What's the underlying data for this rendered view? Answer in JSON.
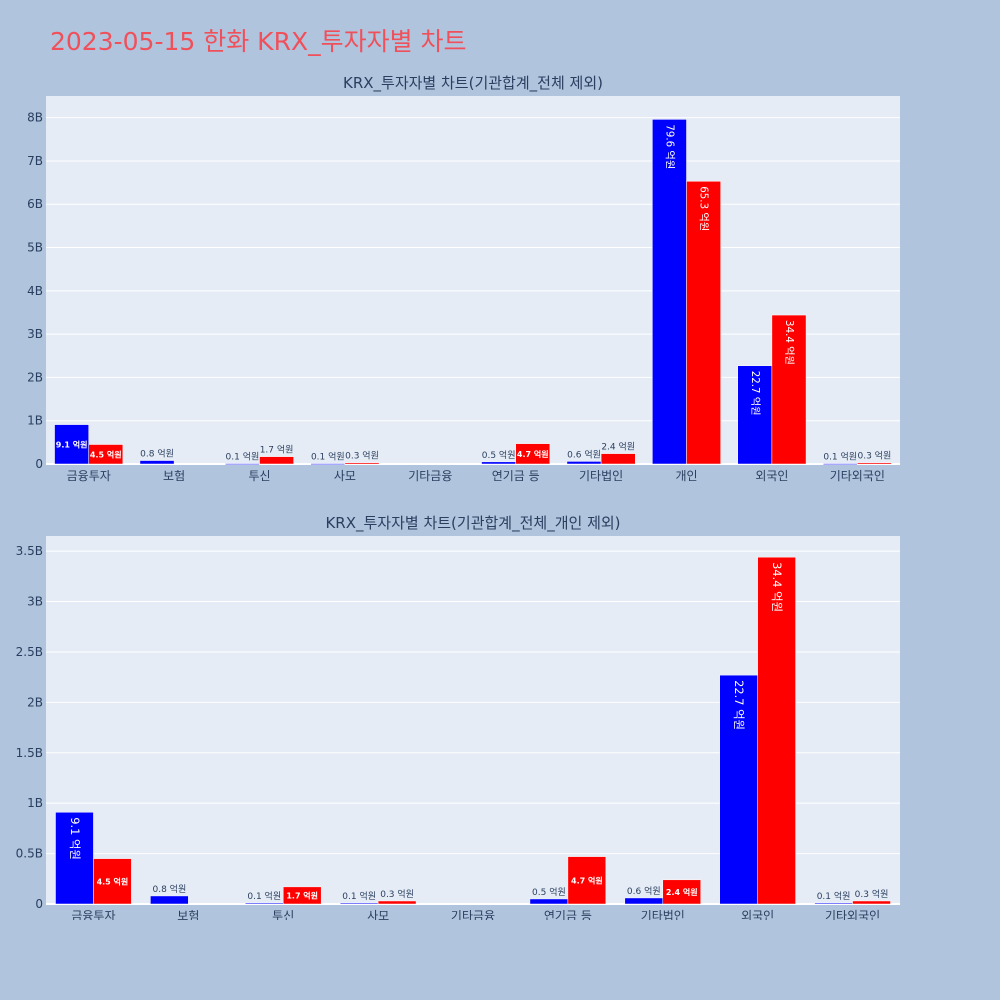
{
  "page": {
    "title": "2023-05-15 한화 KRX_투자자별 차트"
  },
  "colors": {
    "page_bg": "#b0c4de",
    "plot_bg": "#e5ecf6",
    "series_a": "#0000ff",
    "series_b": "#ff0000",
    "grid": "#ffffff",
    "text": "#2a3f5f"
  },
  "chart_data": [
    {
      "type": "bar",
      "title": "KRX_투자자별 차트(기관합계_전체 제외)",
      "xlabel": "",
      "ylabel": "",
      "categories": [
        "금융투자",
        "보험",
        "투신",
        "사모",
        "기타금융",
        "연기금 등",
        "기타법인",
        "개인",
        "외국인",
        "기타외국인"
      ],
      "series": [
        {
          "values": [
            0.91,
            0.08,
            0.01,
            0.01,
            0,
            0.05,
            0.06,
            7.96,
            2.27,
            0.01
          ],
          "labels": [
            "9.1 억원",
            "0.8 억원",
            "0.1 억원",
            "0.1 억원",
            "",
            "0.5 억원",
            "0.6 억원",
            "79.6 억원",
            "22.7 억원",
            "0.1 억원"
          ]
        },
        {
          "values": [
            0.45,
            0,
            0.17,
            0.03,
            0,
            0.47,
            0.24,
            6.53,
            3.44,
            0.03
          ],
          "labels": [
            "4.5 억원",
            "",
            "1.7 억원",
            "0.3 억원",
            "",
            "4.7 억원",
            "2.4 억원",
            "65.3 억원",
            "34.4 억원",
            "0.3 억원"
          ]
        }
      ],
      "ylim": [
        0,
        8.5
      ],
      "yticks": [
        0,
        1,
        2,
        3,
        4,
        5,
        6,
        7,
        8
      ],
      "ytick_labels": [
        "0",
        "1B",
        "2B",
        "3B",
        "4B",
        "5B",
        "6B",
        "7B",
        "8B"
      ],
      "grid": true,
      "legend": "none"
    },
    {
      "type": "bar",
      "title": "KRX_투자자별 차트(기관합계_전체_개인 제외)",
      "xlabel": "",
      "ylabel": "",
      "categories": [
        "금융투자",
        "보험",
        "투신",
        "사모",
        "기타금융",
        "연기금 등",
        "기타법인",
        "외국인",
        "기타외국인"
      ],
      "series": [
        {
          "values": [
            0.91,
            0.08,
            0.01,
            0.01,
            0,
            0.05,
            0.06,
            2.27,
            0.01
          ],
          "labels": [
            "9.1 억원",
            "0.8 억원",
            "0.1 억원",
            "0.1 억원",
            "",
            "0.5 억원",
            "0.6 억원",
            "22.7 억원",
            "0.1 억원"
          ]
        },
        {
          "values": [
            0.45,
            0,
            0.17,
            0.03,
            0,
            0.47,
            0.24,
            3.44,
            0.03
          ],
          "labels": [
            "4.5 억원",
            "",
            "1.7 억원",
            "0.3 억원",
            "",
            "4.7 억원",
            "2.4 억원",
            "34.4 억원",
            "0.3 억원"
          ]
        }
      ],
      "ylim": [
        0,
        3.65
      ],
      "yticks": [
        0,
        0.5,
        1,
        1.5,
        2,
        2.5,
        3,
        3.5
      ],
      "ytick_labels": [
        "0",
        "0.5B",
        "1B",
        "1.5B",
        "2B",
        "2.5B",
        "3B",
        "3.5B"
      ],
      "grid": true,
      "legend": "none"
    }
  ]
}
